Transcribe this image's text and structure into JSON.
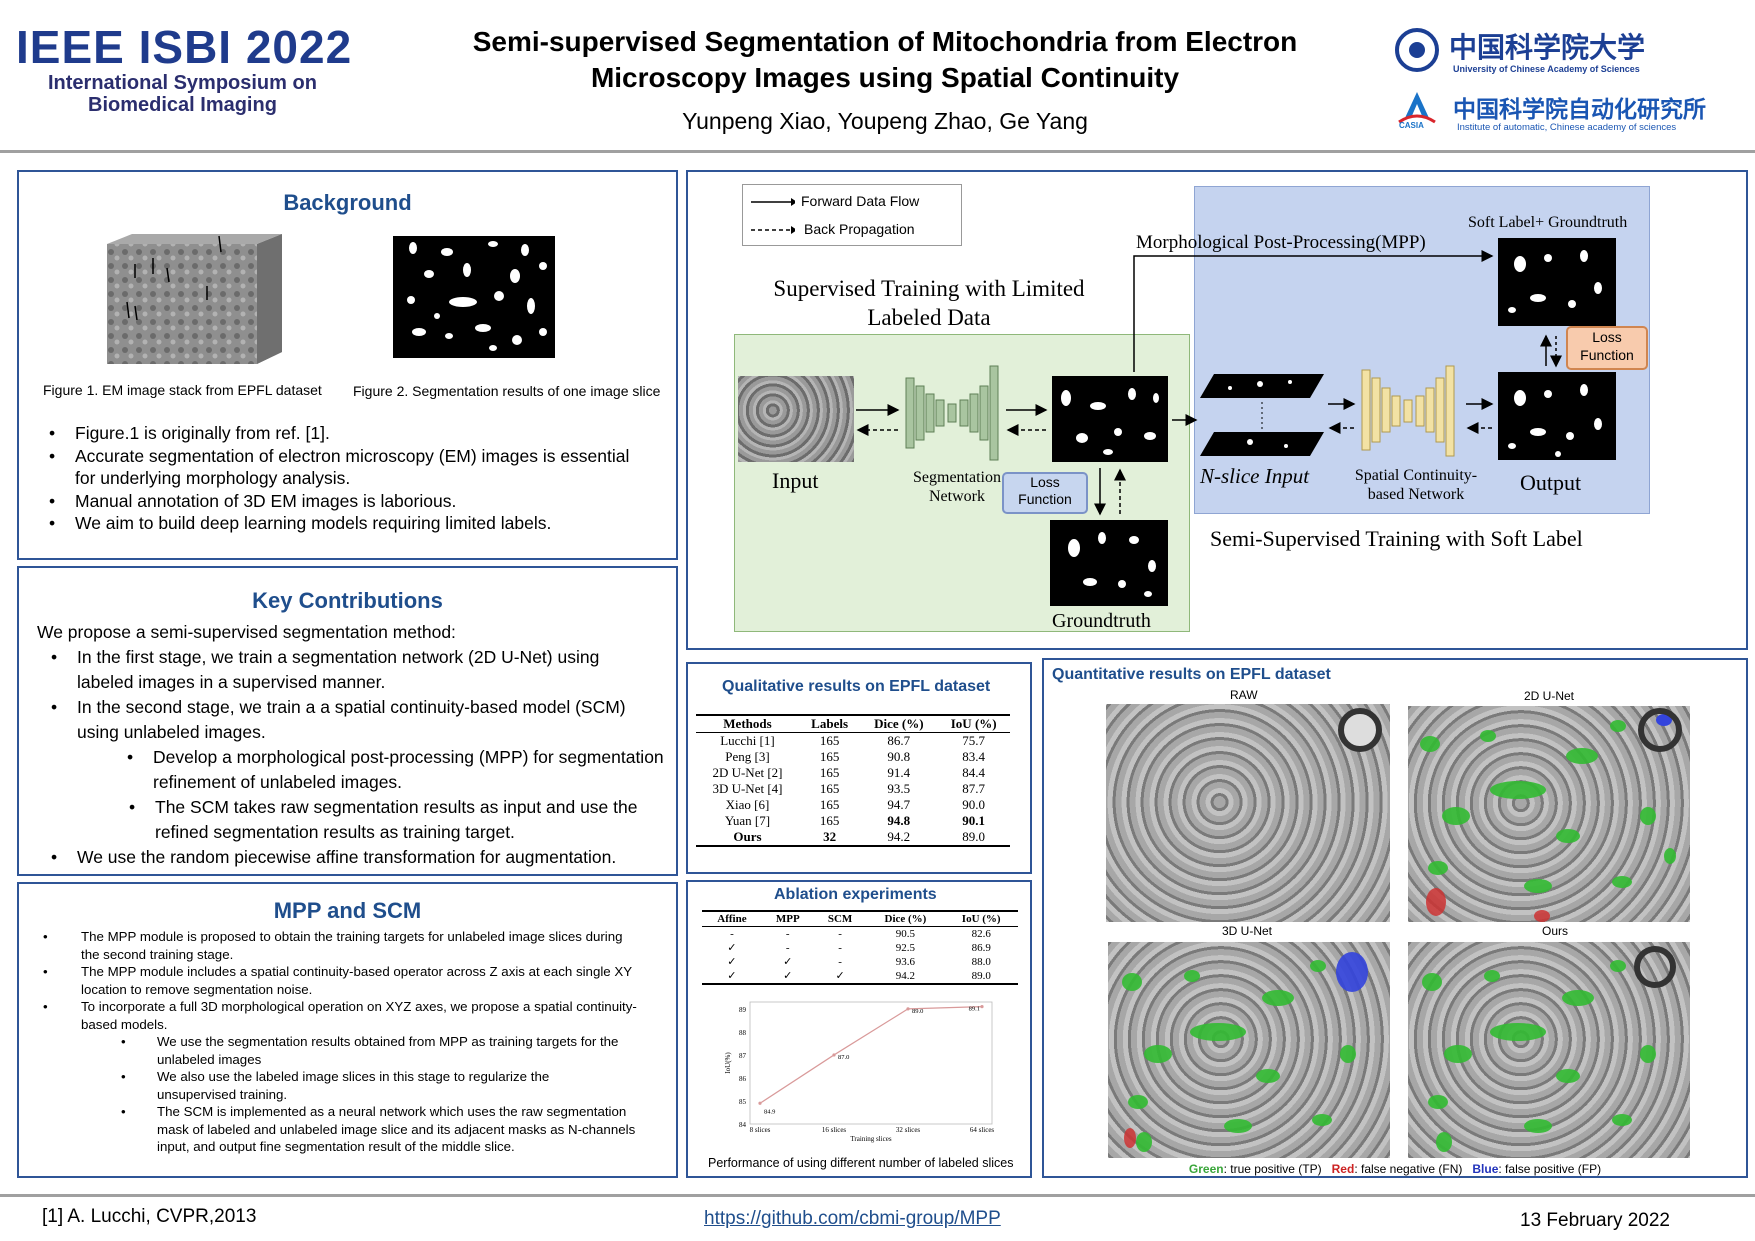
{
  "header": {
    "logo_main": "IEEE ISBI 2022",
    "logo_sub1": "International Symposium on",
    "logo_sub2": "Biomedical Imaging",
    "title_line1": "Semi-supervised Segmentation of Mitochondria from Electron",
    "title_line2": "Microscopy Images using Spatial Continuity",
    "authors": "Yunpeng Xiao, Youpeng Zhao, Ge Yang",
    "ucas_cn": "中国科学院大学",
    "ucas_en": "University of Chinese Academy of Sciences",
    "casia_cn": "中国科学院自动化研究所",
    "casia_en": "Institute of automatic, Chinese academy of sciences",
    "casia_logo": "CASIA"
  },
  "background": {
    "title": "Background",
    "fig1_caption": "Figure 1. EM image stack from EPFL dataset",
    "fig2_caption": "Figure 2. Segmentation results of one image slice",
    "bullets": [
      "Figure.1 is originally from ref. [1].",
      "Accurate segmentation of electron microscopy (EM) images is essential for underlying morphology analysis.",
      "Manual annotation of 3D EM images is laborious.",
      "We aim to build deep learning models requiring limited labels."
    ]
  },
  "contributions": {
    "title": "Key Contributions",
    "intro": "We propose a semi-supervised segmentation method:",
    "b1": "In the first stage, we train a segmentation network (2D U-Net) using labeled images in a supervised manner.",
    "b2": "In the second stage, we train a a spatial continuity-based model (SCM) using unlabeled images.",
    "b2a": "Develop a morphological post-processing (MPP) for segmentation refinement of unlabeled images.",
    "b2b": "The SCM takes raw segmentation results as input and use the refined segmentation results as training target.",
    "b3": "We use the random piecewise affine transformation for augmentation."
  },
  "mpp": {
    "title": "MPP and SCM",
    "b1": "The MPP module is proposed to obtain the training targets for unlabeled image slices during the second training stage.",
    "b2": "The MPP module includes a spatial continuity-based operator across Z axis at each single XY location to remove segmentation noise.",
    "b3": "To incorporate a full 3D morphological operation on XYZ axes, we propose a spatial continuity-based models.",
    "b3a": "We use the segmentation results obtained from MPP as training targets for the unlabeled images",
    "b3b": "We also use the labeled image slices in this stage to regularize the unsupervised training.",
    "b3c": "The SCM is implemented as a neural network which uses the raw segmentation mask of labeled and unlabeled image slice and its adjacent masks as N-channels input, and output fine segmentation result of the middle slice."
  },
  "diagram": {
    "legend_forward": "Forward Data Flow",
    "legend_back": "Back Propagation",
    "supervised_title1": "Supervised Training with Limited",
    "supervised_title2": "Labeled Data",
    "mpp_label": "Morphological Post-Processing(MPP)",
    "soft_label": "Soft Label+ Groundtruth",
    "input": "Input",
    "seg_net1": "Segmentation",
    "seg_net2": "Network",
    "loss1_a": "Loss",
    "loss1_b": "Function",
    "loss2_a": "Loss",
    "loss2_b": "Function",
    "groundtruth": "Groundtruth",
    "nslice": "N-slice Input",
    "scn1": "Spatial Continuity-",
    "scn2": "based Network",
    "output": "Output",
    "semi_title": "Semi-Supervised Training with Soft Label"
  },
  "qualitative": {
    "title": "Qualitative results on EPFL dataset",
    "headers": [
      "Methods",
      "Labels",
      "Dice (%)",
      "IoU (%)"
    ],
    "rows": [
      [
        "Lucchi [1]",
        "165",
        "86.7",
        "75.7"
      ],
      [
        "Peng [3]",
        "165",
        "90.8",
        "83.4"
      ],
      [
        "2D U-Net [2]",
        "165",
        "91.4",
        "84.4"
      ],
      [
        "3D U-Net [4]",
        "165",
        "93.5",
        "87.7"
      ],
      [
        "Xiao [6]",
        "165",
        "94.7",
        "90.0"
      ],
      [
        "Yuan [7]",
        "165",
        "94.8",
        "90.1"
      ],
      [
        "Ours",
        "32",
        "94.2",
        "89.0"
      ]
    ]
  },
  "ablation": {
    "title": "Ablation experiments",
    "headers": [
      "Affine",
      "MPP",
      "SCM",
      "Dice (%)",
      "IoU (%)"
    ],
    "rows": [
      [
        "-",
        "-",
        "-",
        "90.5",
        "82.6"
      ],
      [
        "✓",
        "-",
        "-",
        "92.5",
        "86.9"
      ],
      [
        "✓",
        "✓",
        "-",
        "93.6",
        "88.0"
      ],
      [
        "✓",
        "✓",
        "✓",
        "94.2",
        "89.0"
      ]
    ],
    "chart_caption": "Performance of using different number of labeled slices"
  },
  "chart_data": {
    "type": "line",
    "categories": [
      "8 slices",
      "16 slices",
      "32 slices",
      "64 slices"
    ],
    "values": [
      84.9,
      87.0,
      89.0,
      89.1
    ],
    "data_labels": [
      "84.9",
      "87.0",
      "89.0",
      "89.1"
    ],
    "xlabel": "Training slices",
    "ylabel": "IoU(%)",
    "yticks": [
      "84",
      "85",
      "86",
      "87",
      "88",
      "89"
    ],
    "ylim": [
      84,
      89.3
    ],
    "color": "#d99a9a"
  },
  "quantitative": {
    "title": "Quantitative results on EPFL dataset",
    "labels": [
      "RAW",
      "2D U-Net",
      "3D U-Net",
      "Ours"
    ],
    "legend_green": "Green",
    "legend_green_text": ": true positive (TP)",
    "legend_red": "Red",
    "legend_red_text": ": false negative (FN)",
    "legend_blue": "Blue",
    "legend_blue_text": ": false positive (FP)"
  },
  "footer": {
    "ref": "[1] A. Lucchi, CVPR,2013",
    "link": "https://github.com/cbmi-group/MPP",
    "date": "13 February 2022"
  }
}
